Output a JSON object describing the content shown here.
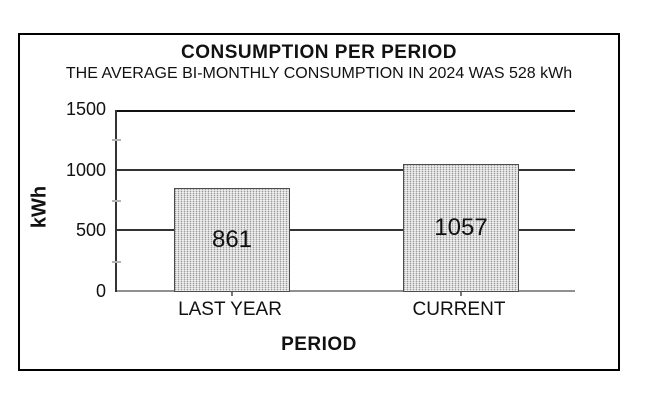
{
  "chart_data": {
    "type": "bar",
    "title": "CONSUMPTION PER PERIOD",
    "subtitle": "THE AVERAGE BI-MONTHLY CONSUMPTION IN 2024 WAS 528 kWh",
    "categories": [
      "LAST YEAR",
      "CURRENT"
    ],
    "values": [
      861,
      1057
    ],
    "bar_labels": [
      "861",
      "1057"
    ],
    "xlabel": "PERIOD",
    "ylabel": "kWh",
    "ylim": [
      0,
      1500
    ],
    "yticks": [
      0,
      500,
      1000,
      1500
    ],
    "yticks_minor": [
      250,
      750,
      1250
    ],
    "grid": "horizontal gridlines at major y ticks",
    "legend": "none",
    "colors": {
      "bar_fill": "#d8d8d8",
      "bar_hatch": "#9a9a9a",
      "bar_border": "#4d4d4d",
      "gridline": "#333333",
      "gridline_top": "#111111",
      "baseline": "#909090",
      "frame_border": "#000000",
      "text": "#111111",
      "background": "#ffffff"
    }
  }
}
